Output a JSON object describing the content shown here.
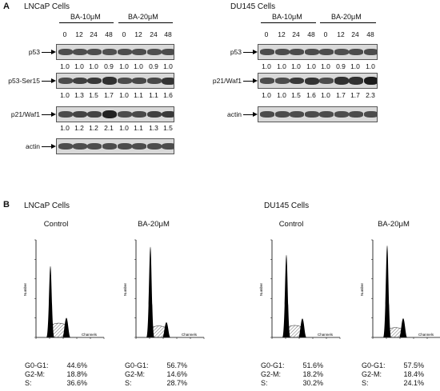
{
  "panelA": {
    "letter": "A",
    "lncap": {
      "title": "LNCaP Cells",
      "groups": [
        "BA-10μM",
        "BA-20μM"
      ],
      "times": [
        "0",
        "12",
        "24",
        "48",
        "0",
        "12",
        "24",
        "48"
      ],
      "blots": [
        {
          "label": "p53",
          "quant": [
            "1.0",
            "1.0",
            "1.0",
            "0.9",
            "1.0",
            "1.0",
            "0.9",
            "1.0"
          ]
        },
        {
          "label": "p53-Ser15",
          "quant": [
            "1.0",
            "1.3",
            "1.5",
            "1.7",
            "1.0",
            "1.1",
            "1.1",
            "1.6"
          ]
        },
        {
          "label": "p21/Waf1",
          "quant": [
            "1.0",
            "1.2",
            "1.2",
            "2.1",
            "1.0",
            "1.1",
            "1.3",
            "1.5"
          ]
        },
        {
          "label": "actin",
          "quant": []
        }
      ]
    },
    "du145": {
      "title": "DU145 Cells",
      "groups": [
        "BA-10μM",
        "BA-20μM"
      ],
      "times": [
        "0",
        "12",
        "24",
        "48",
        "0",
        "12",
        "24",
        "48"
      ],
      "blots": [
        {
          "label": "p53",
          "quant": [
            "1.0",
            "1.0",
            "1.0",
            "1.0",
            "1.0",
            "0.9",
            "1.0",
            "1.0"
          ]
        },
        {
          "label": "p21/Waf1",
          "quant": [
            "1.0",
            "1.0",
            "1.5",
            "1.6",
            "1.0",
            "1.7",
            "1.7",
            "2.3"
          ]
        },
        {
          "label": "actin",
          "quant": []
        }
      ]
    }
  },
  "panelB": {
    "letter": "B",
    "lncap_title": "LNCaP Cells",
    "du145_title": "DU145 Cells",
    "x_axis_label": "Channels",
    "y_axis_label": "Number",
    "histograms": [
      {
        "title": "Control",
        "stats": [
          {
            "phase": "G0-G1:",
            "value": "44.6%"
          },
          {
            "phase": "G2-M:",
            "value": "18.8%"
          },
          {
            "phase": "S:",
            "value": "36.6%"
          }
        ]
      },
      {
        "title": "BA-20μM",
        "stats": [
          {
            "phase": "G0-G1:",
            "value": "56.7%"
          },
          {
            "phase": "G2-M:",
            "value": "14.6%"
          },
          {
            "phase": "S:",
            "value": "28.7%"
          }
        ]
      },
      {
        "title": "Control",
        "stats": [
          {
            "phase": "G0-G1:",
            "value": "51.6%"
          },
          {
            "phase": "G2-M:",
            "value": "18.2%"
          },
          {
            "phase": "S:",
            "value": "30.2%"
          }
        ]
      },
      {
        "title": "BA-20μM",
        "stats": [
          {
            "phase": "G0-G1:",
            "value": "57.5%"
          },
          {
            "phase": "G2-M:",
            "value": "18.4%"
          },
          {
            "phase": "S:",
            "value": "24.1%"
          }
        ]
      }
    ]
  }
}
